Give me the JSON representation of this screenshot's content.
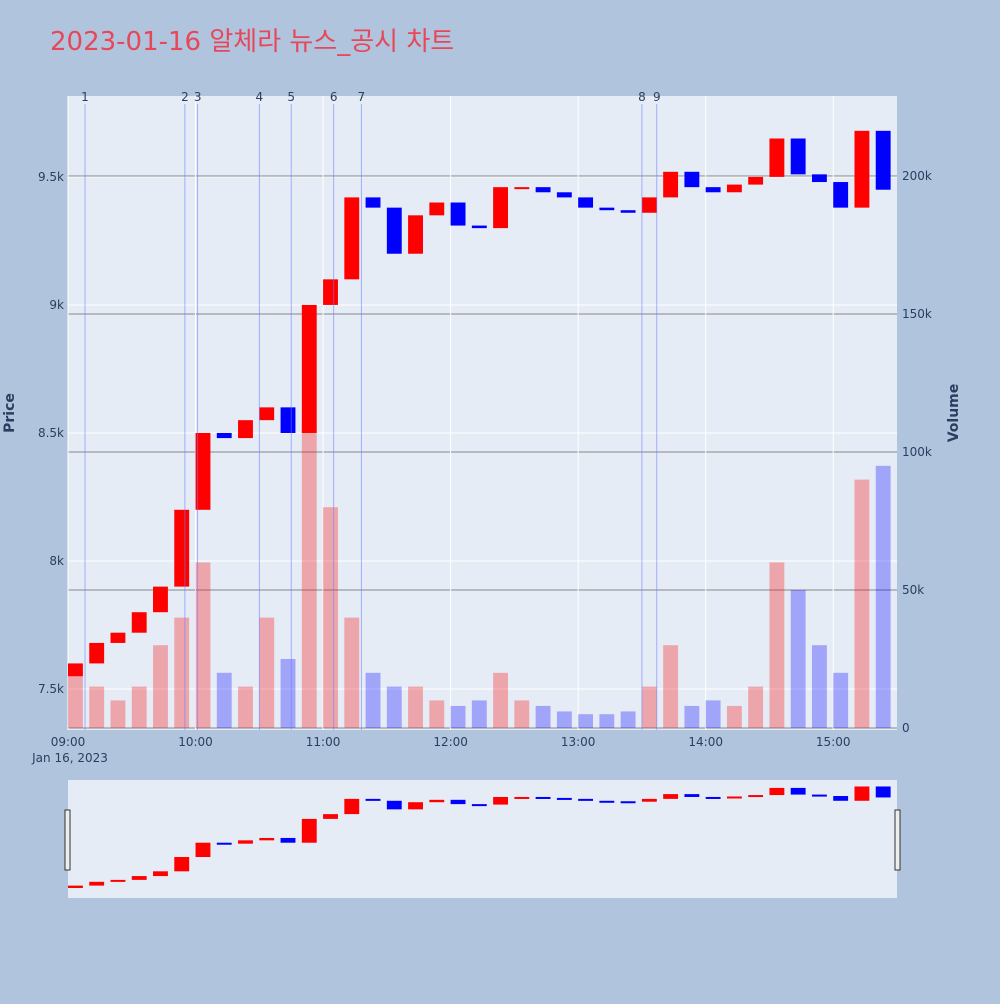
{
  "chart_data": {
    "type": "candlestick",
    "title": "2023-01-16 알체라 뉴스_공시 차트",
    "x_sublabel": "Jan 16, 2023",
    "y_label": "Price",
    "y2_label": "Volume",
    "x": [
      "09:00",
      "09:10",
      "09:20",
      "09:30",
      "09:40",
      "09:50",
      "10:00",
      "10:10",
      "10:20",
      "10:30",
      "10:40",
      "10:50",
      "11:00",
      "11:10",
      "11:20",
      "11:30",
      "11:40",
      "11:50",
      "12:00",
      "12:10",
      "12:20",
      "12:30",
      "12:40",
      "12:50",
      "13:00",
      "13:10",
      "13:20",
      "13:30",
      "13:40",
      "13:50",
      "14:00",
      "14:10",
      "14:20",
      "14:30",
      "14:40",
      "14:50",
      "15:00",
      "15:10",
      "15:20"
    ],
    "open": [
      7550,
      7600,
      7680,
      7720,
      7800,
      7900,
      8200,
      8500,
      8480,
      8550,
      8600,
      8500,
      9000,
      9100,
      9420,
      9380,
      9200,
      9350,
      9400,
      9310,
      9300,
      9460,
      9460,
      9440,
      9420,
      9380,
      9370,
      9360,
      9420,
      9520,
      9460,
      9440,
      9470,
      9500,
      9650,
      9510,
      9480,
      9380,
      9680
    ],
    "close": [
      7600,
      7680,
      7720,
      7800,
      7900,
      8200,
      8500,
      8480,
      8550,
      8600,
      8500,
      9000,
      9100,
      9420,
      9380,
      9200,
      9350,
      9400,
      9310,
      9300,
      9460,
      9460,
      9440,
      9420,
      9380,
      9370,
      9360,
      9420,
      9520,
      9460,
      9440,
      9470,
      9500,
      9650,
      9510,
      9480,
      9380,
      9680,
      9450
    ],
    "volume": [
      20000,
      15000,
      10000,
      15000,
      30000,
      40000,
      60000,
      20000,
      15000,
      40000,
      25000,
      110000,
      80000,
      40000,
      20000,
      15000,
      15000,
      10000,
      8000,
      10000,
      20000,
      10000,
      8000,
      6000,
      5000,
      5000,
      6000,
      15000,
      30000,
      8000,
      10000,
      8000,
      15000,
      60000,
      50000,
      30000,
      20000,
      90000,
      95000
    ],
    "up_color": "#ff0000",
    "down_color": "#0000ff",
    "news": [
      {
        "label": "1",
        "time": "09:08"
      },
      {
        "label": "2",
        "time": "09:55"
      },
      {
        "label": "3",
        "time": "10:01"
      },
      {
        "label": "4",
        "time": "10:30"
      },
      {
        "label": "5",
        "time": "10:45"
      },
      {
        "label": "6",
        "time": "11:05"
      },
      {
        "label": "7",
        "time": "11:18"
      },
      {
        "label": "8",
        "time": "13:30"
      },
      {
        "label": "9",
        "time": "13:37"
      }
    ],
    "xlim": [
      "09:00",
      "15:30"
    ],
    "xticks": [
      "09:00",
      "10:00",
      "11:00",
      "12:00",
      "13:00",
      "14:00",
      "15:00"
    ],
    "ylim": [
      7340,
      9816
    ],
    "yticks": [
      {
        "value": 7500,
        "label": "7.5k"
      },
      {
        "value": 8000,
        "label": "8k"
      },
      {
        "value": 8500,
        "label": "8.5k"
      },
      {
        "value": 9000,
        "label": "9k"
      },
      {
        "value": 9500,
        "label": "9.5k"
      }
    ],
    "y2lim": [
      0,
      229000
    ],
    "y2ticks": [
      0,
      {
        "value": 50000,
        "label": "50k"
      },
      {
        "value": 100000,
        "label": "100k"
      },
      {
        "value": 150000,
        "label": "150k"
      },
      {
        "value": 200000,
        "label": "200k"
      }
    ]
  }
}
